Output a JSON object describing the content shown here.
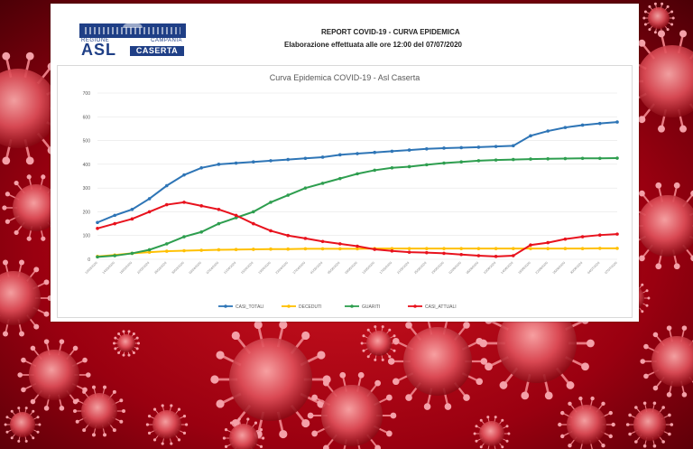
{
  "report": {
    "title": "REPORT COVID-19 - CURVA EPIDEMICA",
    "subtitle": "Elaborazione effettuata alle ore 12:00 del 07/07/2020",
    "logo": {
      "top_text": "REGIONE",
      "region": "CAMPANIA",
      "asl": "ASL",
      "caserta": "CASERTA"
    }
  },
  "colors": {
    "CASI_TOTALI": "#2e75b6",
    "DECEDUTI": "#ffc000",
    "GUARITI": "#2e9e4f",
    "CASI_ATTUALI": "#e8121d"
  },
  "chart_data": {
    "type": "line",
    "title": "Curva Epidemica COVID-19 - Asl Caserta",
    "ylabel": "",
    "xlabel": "",
    "ylim": [
      0,
      700
    ],
    "yticks": [
      0,
      100,
      200,
      300,
      400,
      500,
      600,
      700
    ],
    "x": [
      "10/03/2020",
      "14/03/2020",
      "18/03/2020",
      "22/03/2020",
      "26/03/2020",
      "30/03/2020",
      "03/04/2020",
      "07/04/2020",
      "11/04/2020",
      "15/04/2020",
      "19/04/2020",
      "23/04/2020",
      "27/04/2020",
      "01/05/2020",
      "05/05/2020",
      "09/05/2020",
      "13/05/2020",
      "17/05/2020",
      "21/05/2020",
      "25/05/2020",
      "29/05/2020",
      "02/06/2020",
      "06/06/2020",
      "10/06/2020",
      "14/06/2020",
      "18/06/2020",
      "22/06/2020",
      "26/06/2020",
      "30/06/2020",
      "04/07/2020",
      "07/07/2020"
    ],
    "legend_position": "bottom",
    "grid": true,
    "series": [
      {
        "name": "CASI_TOTALI",
        "values": [
          155,
          185,
          210,
          255,
          310,
          355,
          385,
          400,
          405,
          410,
          415,
          420,
          425,
          430,
          440,
          445,
          450,
          455,
          460,
          465,
          468,
          470,
          472,
          475,
          478,
          520,
          540,
          555,
          565,
          572,
          578
        ]
      },
      {
        "name": "DECEDUTI",
        "values": [
          12,
          18,
          25,
          30,
          34,
          36,
          38,
          40,
          41,
          42,
          43,
          43,
          44,
          44,
          44,
          44,
          45,
          45,
          45,
          45,
          45,
          45,
          45,
          45,
          45,
          45,
          45,
          45,
          45,
          46,
          46
        ]
      },
      {
        "name": "GUARITI",
        "values": [
          10,
          15,
          25,
          40,
          65,
          95,
          115,
          150,
          175,
          200,
          240,
          270,
          300,
          320,
          340,
          360,
          375,
          385,
          390,
          398,
          405,
          410,
          415,
          418,
          420,
          422,
          423,
          424,
          425,
          425,
          426
        ]
      },
      {
        "name": "CASI_ATTUALI",
        "values": [
          130,
          150,
          170,
          200,
          230,
          240,
          225,
          210,
          185,
          150,
          120,
          100,
          88,
          75,
          65,
          55,
          42,
          35,
          30,
          28,
          25,
          20,
          15,
          12,
          15,
          60,
          70,
          85,
          95,
          102,
          106
        ]
      }
    ]
  }
}
